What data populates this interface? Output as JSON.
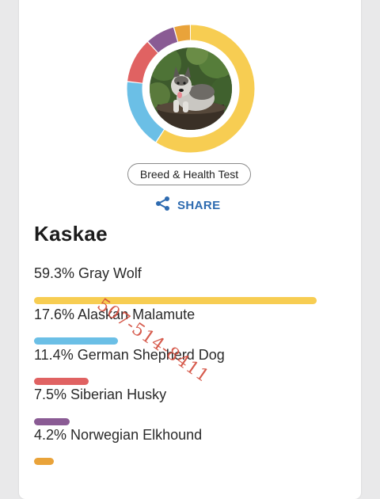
{
  "colors": {
    "gray_wolf": "#f7cd52",
    "alaskan_malamute": "#6bbfe6",
    "german_shepherd": "#e06262",
    "siberian_husky": "#8a5b94",
    "norwegian_elkhound": "#e9a33a",
    "share_blue": "#2e6bb0"
  },
  "profile": {
    "chip_label": "Breed & Health Test",
    "share_label": "SHARE",
    "share_icon": "share-icon",
    "dog_name": "Kaskae",
    "photo_alt": "dog-photo"
  },
  "breeds": [
    {
      "label": "59.3% Gray Wolf",
      "percent": 59.3,
      "color": "#f7cd52"
    },
    {
      "label": "17.6% Alaskan Malamute",
      "percent": 17.6,
      "color": "#6bbfe6"
    },
    {
      "label": "11.4% German Shepherd Dog",
      "percent": 11.4,
      "color": "#e06262"
    },
    {
      "label": "7.5% Siberian Husky",
      "percent": 7.5,
      "color": "#8a5b94"
    },
    {
      "label": "4.2% Norwegian Elkhound",
      "percent": 4.2,
      "color": "#e9a33a"
    }
  ],
  "watermark": "507-514-8411"
}
